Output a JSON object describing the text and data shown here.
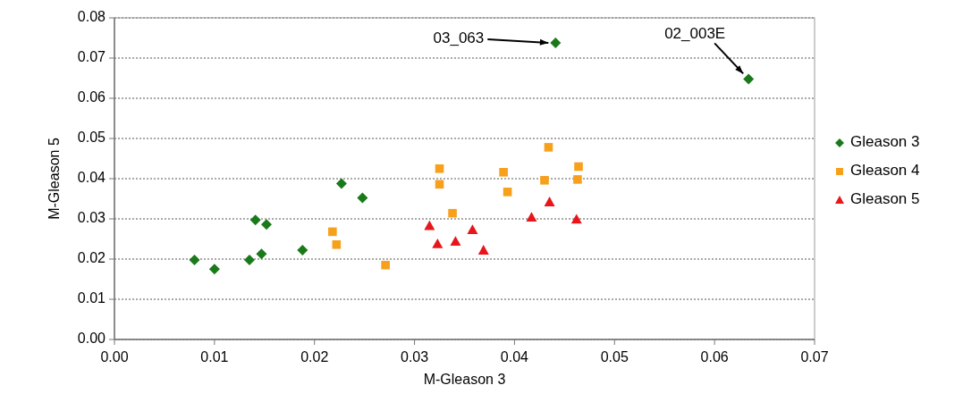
{
  "chart_data": {
    "type": "scatter",
    "xlabel": "M-Gleason 3",
    "ylabel": "M-Gleason 5",
    "xlim": [
      0,
      0.07
    ],
    "ylim": [
      0,
      0.08
    ],
    "xticks": [
      {
        "value": 0,
        "label": "0.00"
      },
      {
        "value": 0.01,
        "label": "0.01"
      },
      {
        "value": 0.02,
        "label": "0.02"
      },
      {
        "value": 0.03,
        "label": "0.03"
      },
      {
        "value": 0.04,
        "label": "0.04"
      },
      {
        "value": 0.05,
        "label": "0.05"
      },
      {
        "value": 0.06,
        "label": "0.06"
      },
      {
        "value": 0.07,
        "label": "0.07"
      }
    ],
    "yticks": [
      {
        "value": 0,
        "label": "0.00"
      },
      {
        "value": 0.01,
        "label": "0.01"
      },
      {
        "value": 0.02,
        "label": "0.02"
      },
      {
        "value": 0.03,
        "label": "0.03"
      },
      {
        "value": 0.04,
        "label": "0.04"
      },
      {
        "value": 0.05,
        "label": "0.05"
      },
      {
        "value": 0.06,
        "label": "0.06"
      },
      {
        "value": 0.07,
        "label": "0.07"
      },
      {
        "value": 0.08,
        "label": "0.08"
      }
    ],
    "grid": "y",
    "legend": "right",
    "series": [
      {
        "name": "Gleason 3",
        "color": "#1a7a1a",
        "marker": "diamond",
        "x": [
          0.008,
          0.01,
          0.0135,
          0.0141,
          0.0147,
          0.0152,
          0.0188,
          0.0227,
          0.0248,
          0.0441,
          0.0634
        ],
        "values": [
          0.0198,
          0.0175,
          0.0198,
          0.0297,
          0.0213,
          0.0286,
          0.0222,
          0.0388,
          0.0352,
          0.0738,
          0.0648
        ]
      },
      {
        "name": "Gleason 4",
        "color": "#f7a01c",
        "marker": "square",
        "x": [
          0.0218,
          0.0222,
          0.0271,
          0.0325,
          0.0325,
          0.0338,
          0.0389,
          0.0393,
          0.043,
          0.0434,
          0.0463,
          0.0464
        ],
        "values": [
          0.0268,
          0.0236,
          0.0185,
          0.0425,
          0.0386,
          0.0314,
          0.0416,
          0.0367,
          0.0396,
          0.0478,
          0.0398,
          0.043
        ]
      },
      {
        "name": "Gleason 5",
        "color": "#e8161b",
        "marker": "triangle",
        "x": [
          0.0315,
          0.0323,
          0.0341,
          0.0358,
          0.0369,
          0.0417,
          0.0435,
          0.0462
        ],
        "values": [
          0.0283,
          0.0238,
          0.0244,
          0.0273,
          0.0222,
          0.0304,
          0.0342,
          0.0299
        ]
      }
    ],
    "annotations": [
      {
        "text": "03_063",
        "x": 0.0441,
        "y": 0.0738
      },
      {
        "text": "02_003E",
        "x": 0.0634,
        "y": 0.0648
      }
    ]
  }
}
